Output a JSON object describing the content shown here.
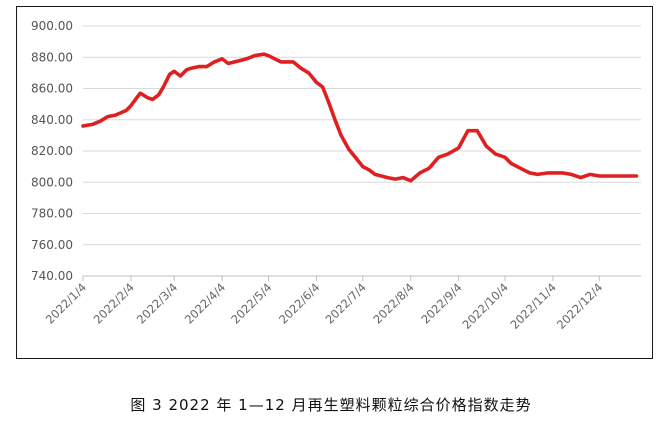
{
  "caption": "图 3  2022 年 1—12 月再生塑料颗粒综合价格指数走势",
  "colors": {
    "line": "#e02020",
    "grid": "#d9d9d9",
    "axis": "#bfbfbf",
    "text": "#555555"
  },
  "chart_data": {
    "type": "line",
    "title": "",
    "xlabel": "",
    "ylabel": "",
    "ylim": [
      740,
      900
    ],
    "y_ticks": [
      "900.00",
      "880.00",
      "860.00",
      "840.00",
      "820.00",
      "800.00",
      "780.00",
      "760.00",
      "740.00"
    ],
    "y_tick_values": [
      900,
      880,
      860,
      840,
      820,
      800,
      780,
      760,
      740
    ],
    "x_ticks": [
      "2022/1/4",
      "2022/2/4",
      "2022/3/4",
      "2022/4/4",
      "2022/5/4",
      "2022/6/4",
      "2022/7/4",
      "2022/8/4",
      "2022/9/4",
      "2022/10/4",
      "2022/11/4",
      "2022/12/4"
    ],
    "grid": true,
    "legend": "none",
    "series": [
      {
        "name": "",
        "x": [
          "2022/1/4",
          "2022/1/10",
          "2022/1/15",
          "2022/1/20",
          "2022/1/25",
          "2022/2/1",
          "2022/2/4",
          "2022/2/10",
          "2022/2/15",
          "2022/2/18",
          "2022/2/22",
          "2022/2/25",
          "2022/3/1",
          "2022/3/4",
          "2022/3/8",
          "2022/3/12",
          "2022/3/15",
          "2022/3/20",
          "2022/3/25",
          "2022/3/30",
          "2022/4/4",
          "2022/4/8",
          "2022/4/12",
          "2022/4/16",
          "2022/4/20",
          "2022/4/25",
          "2022/5/1",
          "2022/5/4",
          "2022/5/8",
          "2022/5/12",
          "2022/5/16",
          "2022/5/20",
          "2022/5/25",
          "2022/5/30",
          "2022/6/4",
          "2022/6/8",
          "2022/6/12",
          "2022/6/16",
          "2022/6/20",
          "2022/6/25",
          "2022/6/30",
          "2022/7/4",
          "2022/7/8",
          "2022/7/12",
          "2022/7/16",
          "2022/7/20",
          "2022/7/25",
          "2022/7/30",
          "2022/8/4",
          "2022/8/10",
          "2022/8/16",
          "2022/8/22",
          "2022/8/28",
          "2022/9/4",
          "2022/9/10",
          "2022/9/16",
          "2022/9/22",
          "2022/9/28",
          "2022/10/4",
          "2022/10/8",
          "2022/10/12",
          "2022/10/16",
          "2022/10/20",
          "2022/10/25",
          "2022/11/1",
          "2022/11/4",
          "2022/11/10",
          "2022/11/16",
          "2022/11/22",
          "2022/11/28",
          "2022/12/4",
          "2022/12/10",
          "2022/12/16",
          "2022/12/22",
          "2022/12/28"
        ],
        "values": [
          836,
          837,
          839,
          842,
          843,
          846,
          849,
          857,
          854,
          853,
          856,
          861,
          869,
          871,
          868,
          872,
          873,
          874,
          874,
          877,
          879,
          876,
          877,
          878,
          879,
          881,
          882,
          881,
          879,
          877,
          877,
          877,
          873,
          870,
          864,
          861,
          851,
          840,
          830,
          821,
          815,
          810,
          808,
          805,
          804,
          803,
          802,
          803,
          801,
          806,
          809,
          816,
          818,
          822,
          833,
          833,
          823,
          818,
          816,
          812,
          810,
          808,
          806,
          805,
          806,
          806,
          806,
          805,
          803,
          805,
          804,
          804,
          804,
          804,
          804
        ]
      }
    ]
  }
}
